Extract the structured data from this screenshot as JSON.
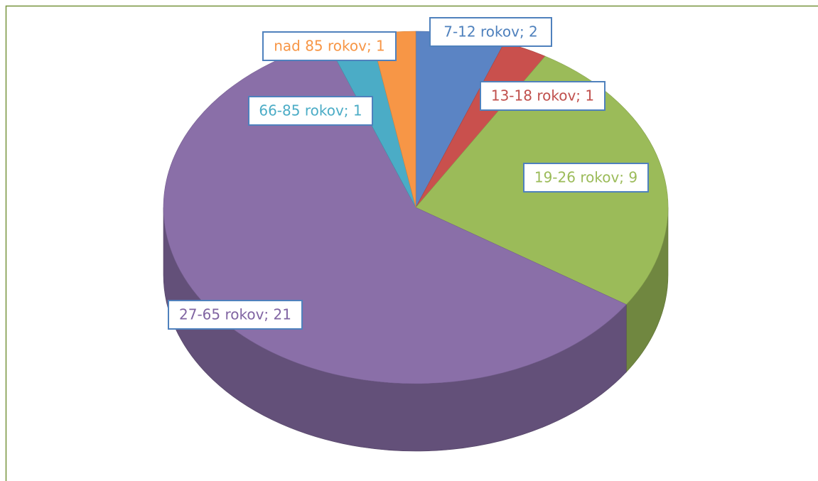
{
  "chart_data": {
    "type": "pie",
    "values": [
      2,
      1,
      9,
      21,
      1,
      1
    ],
    "value_labels": [
      "7-12 rokov; 2",
      "13-18 rokov; 1",
      "19-26 rokov; 9",
      "27-65 rokov; 21",
      "66-85 rokov; 1",
      "nad 85 rokov; 1"
    ],
    "colors": [
      "#5b84c4",
      "#c9504d",
      "#9bbb59",
      "#8a6fa8",
      "#4bacc6",
      "#f79646"
    ],
    "label_colors": [
      "#4f81bd",
      "#c0504d",
      "#9bbb59",
      "#8064a2",
      "#4bacc6",
      "#f79646"
    ]
  }
}
